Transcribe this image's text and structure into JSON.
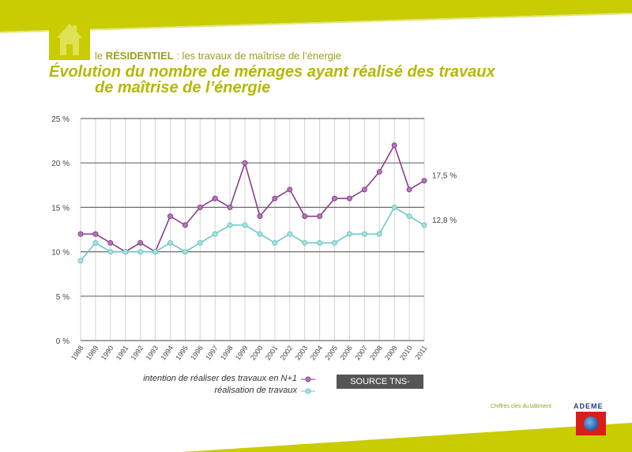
{
  "header": {
    "section_prefix": "le",
    "section_name": "RÉSIDENTIEL",
    "section_rest": " : les travaux de maîtrise de l’énergie",
    "title_line1": "Évolution du nombre de ménages ayant réalisé des travaux",
    "title_line2": "de maîtrise de l’énergie"
  },
  "colors": {
    "accent_green": "#c8cc00",
    "series_purple": "#8a3d8f",
    "series_teal": "#6ec6c6",
    "grid": "#666666"
  },
  "chart_data": {
    "type": "line",
    "categories": [
      "1988",
      "1989",
      "1990",
      "1991",
      "1992",
      "1993",
      "1994",
      "1995",
      "1996",
      "1997",
      "1998",
      "1999",
      "2000",
      "2001",
      "2002",
      "2003",
      "2004",
      "2005",
      "2006",
      "2007",
      "2008",
      "2009",
      "2010",
      "2011"
    ],
    "series": [
      {
        "name": "intention de réaliser des travaux en N+1",
        "values": [
          12,
          12,
          11,
          10,
          11,
          10,
          14,
          13,
          15,
          16,
          15,
          20,
          14,
          16,
          17,
          14,
          14,
          16,
          16,
          17,
          19,
          22,
          17,
          18
        ],
        "end_label": "17,5 %"
      },
      {
        "name": "réalisation de travaux",
        "values": [
          9,
          11,
          10,
          10,
          10,
          10,
          11,
          10,
          11,
          12,
          13,
          13,
          12,
          11,
          12,
          11,
          11,
          11,
          12,
          12,
          12,
          15,
          14,
          13
        ],
        "end_label": "12,8 %"
      }
    ],
    "ylim": [
      0,
      25
    ],
    "yticks": [
      0,
      5,
      10,
      15,
      20,
      25
    ],
    "ytick_labels": [
      "0 %",
      "5 %",
      "10 %",
      "15 %",
      "20 %",
      "25 %"
    ],
    "grid": true,
    "legend_position": "bottom"
  },
  "source": "SOURCE TNS-SOFRES",
  "footer": {
    "caption": "Chiffres clés du bâtiment",
    "brand": "ADEME"
  }
}
